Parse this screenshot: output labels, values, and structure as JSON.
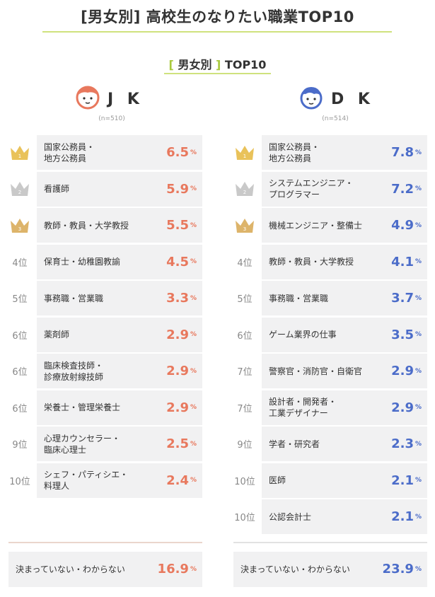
{
  "title": "[男女別] 高校生のなりたい職業TOP10",
  "subtitle": {
    "open": "[",
    "mid": "男女別",
    "close": "]",
    "text": "TOP10"
  },
  "colors": {
    "jk": "#e8785d",
    "dk": "#4b6cc9",
    "accent": "#cfe27d",
    "gold": "#e9c25a",
    "silver": "#c9c9c9",
    "bronze": "#ddb46a"
  },
  "chart_data": [
    {
      "type": "table",
      "group": "J K",
      "n": "(n=510)",
      "unit": "%",
      "rows": [
        {
          "rank": "1",
          "job": "国家公務員・\n地方公務員",
          "value": 6.5
        },
        {
          "rank": "2",
          "job": "看護師",
          "value": 5.9
        },
        {
          "rank": "3",
          "job": "教師・教員・大学教授",
          "value": 5.5
        },
        {
          "rank": "4位",
          "job": "保育士・幼稚園教諭",
          "value": 4.5
        },
        {
          "rank": "5位",
          "job": "事務職・営業職",
          "value": 3.3
        },
        {
          "rank": "6位",
          "job": "薬剤師",
          "value": 2.9
        },
        {
          "rank": "6位",
          "job": "臨床検査技師・\n診療放射線技師",
          "value": 2.9
        },
        {
          "rank": "6位",
          "job": "栄養士・管理栄養士",
          "value": 2.9
        },
        {
          "rank": "9位",
          "job": "心理カウンセラー・\n臨床心理士",
          "value": 2.5
        },
        {
          "rank": "10位",
          "job": "シェフ・パティシエ・\n料理人",
          "value": 2.4
        }
      ],
      "undecided": {
        "label": "決まっていない・わからない",
        "value": 16.9
      }
    },
    {
      "type": "table",
      "group": "D K",
      "n": "(n=514)",
      "unit": "%",
      "rows": [
        {
          "rank": "1",
          "job": "国家公務員・\n地方公務員",
          "value": 7.8
        },
        {
          "rank": "2",
          "job": "システムエンジニア・\nプログラマー",
          "value": 7.2
        },
        {
          "rank": "3",
          "job": "機械エンジニア・整備士",
          "value": 4.9
        },
        {
          "rank": "4位",
          "job": "教師・教員・大学教授",
          "value": 4.1
        },
        {
          "rank": "5位",
          "job": "事務職・営業職",
          "value": 3.7
        },
        {
          "rank": "6位",
          "job": "ゲーム業界の仕事",
          "value": 3.5
        },
        {
          "rank": "7位",
          "job": "警察官・消防官・自衛官",
          "value": 2.9
        },
        {
          "rank": "7位",
          "job": "設計者・開発者・\n工業デザイナー",
          "value": 2.9
        },
        {
          "rank": "9位",
          "job": "学者・研究者",
          "value": 2.3
        },
        {
          "rank": "10位",
          "job": "医師",
          "value": 2.1
        },
        {
          "rank": "10位",
          "job": "公認会計士",
          "value": 2.1
        }
      ],
      "undecided": {
        "label": "決まっていない・わからない",
        "value": 23.9
      }
    }
  ]
}
